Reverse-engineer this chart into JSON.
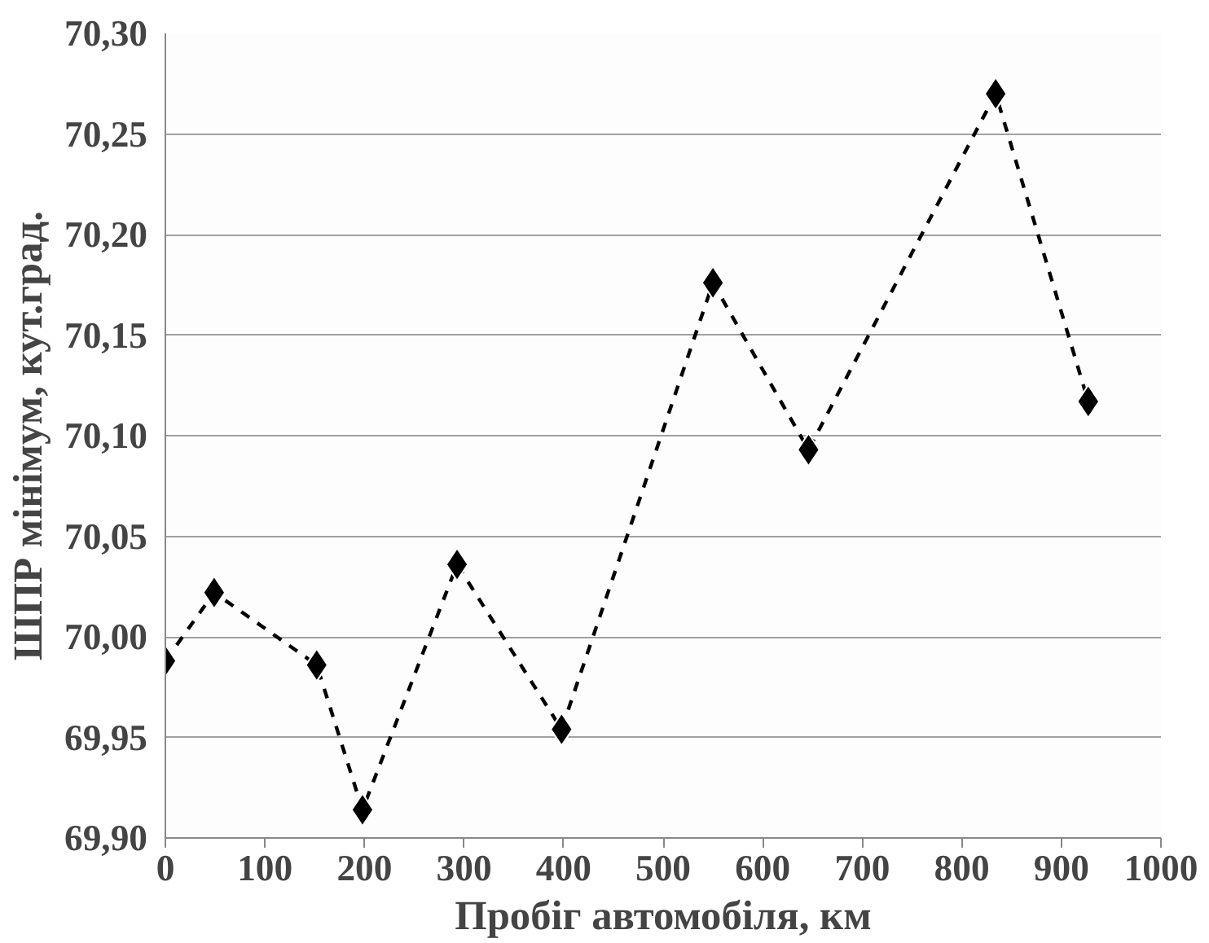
{
  "chart_data": {
    "type": "line",
    "xlabel": "Пробіг автомобіля, км",
    "ylabel": "ШПР мінімум, кут.град.",
    "x": [
      0,
      49,
      152,
      198,
      293,
      398,
      550,
      646,
      834,
      927
    ],
    "values": [
      69.988,
      70.022,
      69.986,
      69.914,
      70.036,
      69.954,
      70.176,
      70.093,
      70.27,
      70.117
    ],
    "color": "#000000",
    "marker": "diamond",
    "line_style": "dashed",
    "grid": "y",
    "xlim": [
      0,
      1000
    ],
    "xticks": [
      0,
      100,
      200,
      300,
      400,
      500,
      600,
      700,
      800,
      900,
      1000
    ],
    "ylim": [
      69.9,
      70.3
    ],
    "yticks": [
      {
        "value": 69.9,
        "label": "69,90"
      },
      {
        "value": 69.95,
        "label": "69,95"
      },
      {
        "value": 70.0,
        "label": "70,00"
      },
      {
        "value": 70.05,
        "label": "70,05"
      },
      {
        "value": 70.1,
        "label": "70,10"
      },
      {
        "value": 70.15,
        "label": "70,15"
      },
      {
        "value": 70.2,
        "label": "70,20"
      },
      {
        "value": 70.25,
        "label": "70,25"
      },
      {
        "value": 70.3,
        "label": "70,30"
      }
    ]
  }
}
